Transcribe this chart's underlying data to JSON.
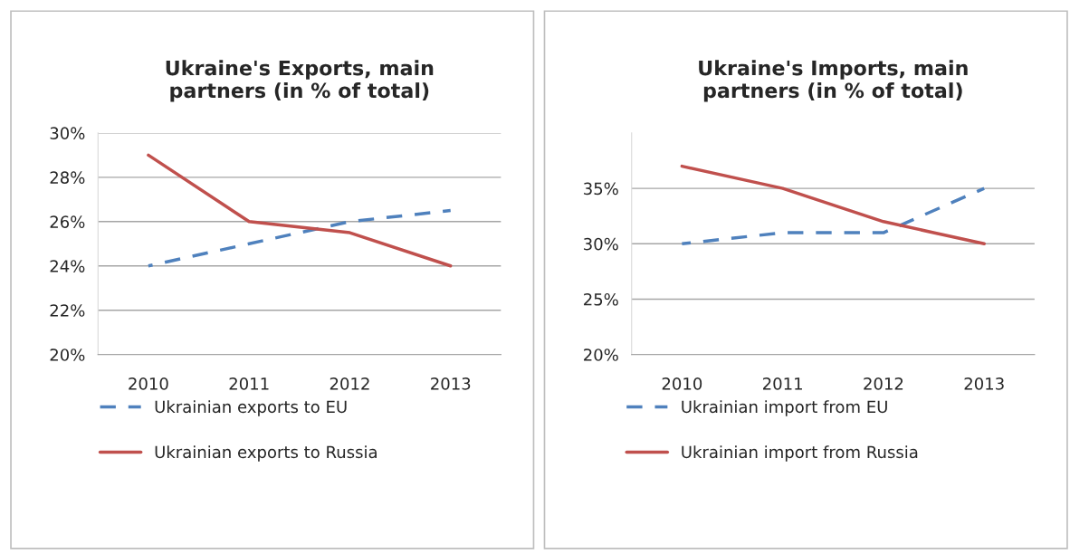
{
  "chart_data": [
    {
      "type": "line",
      "title": "Ukraine's Exports, main\npartners (in % of total)",
      "categories": [
        "2010",
        "2011",
        "2012",
        "2013"
      ],
      "series": [
        {
          "name": "Ukrainian exports to EU",
          "color": "#4f81bd",
          "line_style": "dashed",
          "values": [
            24,
            25,
            26,
            26.5
          ]
        },
        {
          "name": "Ukrainian exports to Russia",
          "color": "#c0504d",
          "line_style": "solid",
          "values": [
            29,
            26,
            25.5,
            24
          ]
        }
      ],
      "ylim": [
        20,
        30
      ],
      "yticks": [
        {
          "value": 20,
          "label": "20%"
        },
        {
          "value": 22,
          "label": "22%"
        },
        {
          "value": 24,
          "label": "24%"
        },
        {
          "value": 26,
          "label": "26%"
        },
        {
          "value": 28,
          "label": "28%"
        },
        {
          "value": 30,
          "label": "30%"
        }
      ],
      "grid": "y",
      "legend": "bottom",
      "marker": "none"
    },
    {
      "type": "line",
      "title": "Ukraine's Imports, main\npartners (in % of total)",
      "categories": [
        "2010",
        "2011",
        "2012",
        "2013"
      ],
      "series": [
        {
          "name": "Ukrainian import from EU",
          "color": "#4f81bd",
          "line_style": "dashed",
          "values": [
            30,
            31,
            31,
            35
          ]
        },
        {
          "name": "Ukrainian import from Russia",
          "color": "#c0504d",
          "line_style": "solid",
          "values": [
            37,
            35,
            32,
            30
          ]
        }
      ],
      "ylim": [
        20,
        40
      ],
      "yticks": [
        {
          "value": 20,
          "label": "20%"
        },
        {
          "value": 25,
          "label": "25%"
        },
        {
          "value": 30,
          "label": "30%"
        },
        {
          "value": 35,
          "label": "35%"
        }
      ],
      "grid": "y",
      "legend": "bottom",
      "marker": "none"
    }
  ]
}
